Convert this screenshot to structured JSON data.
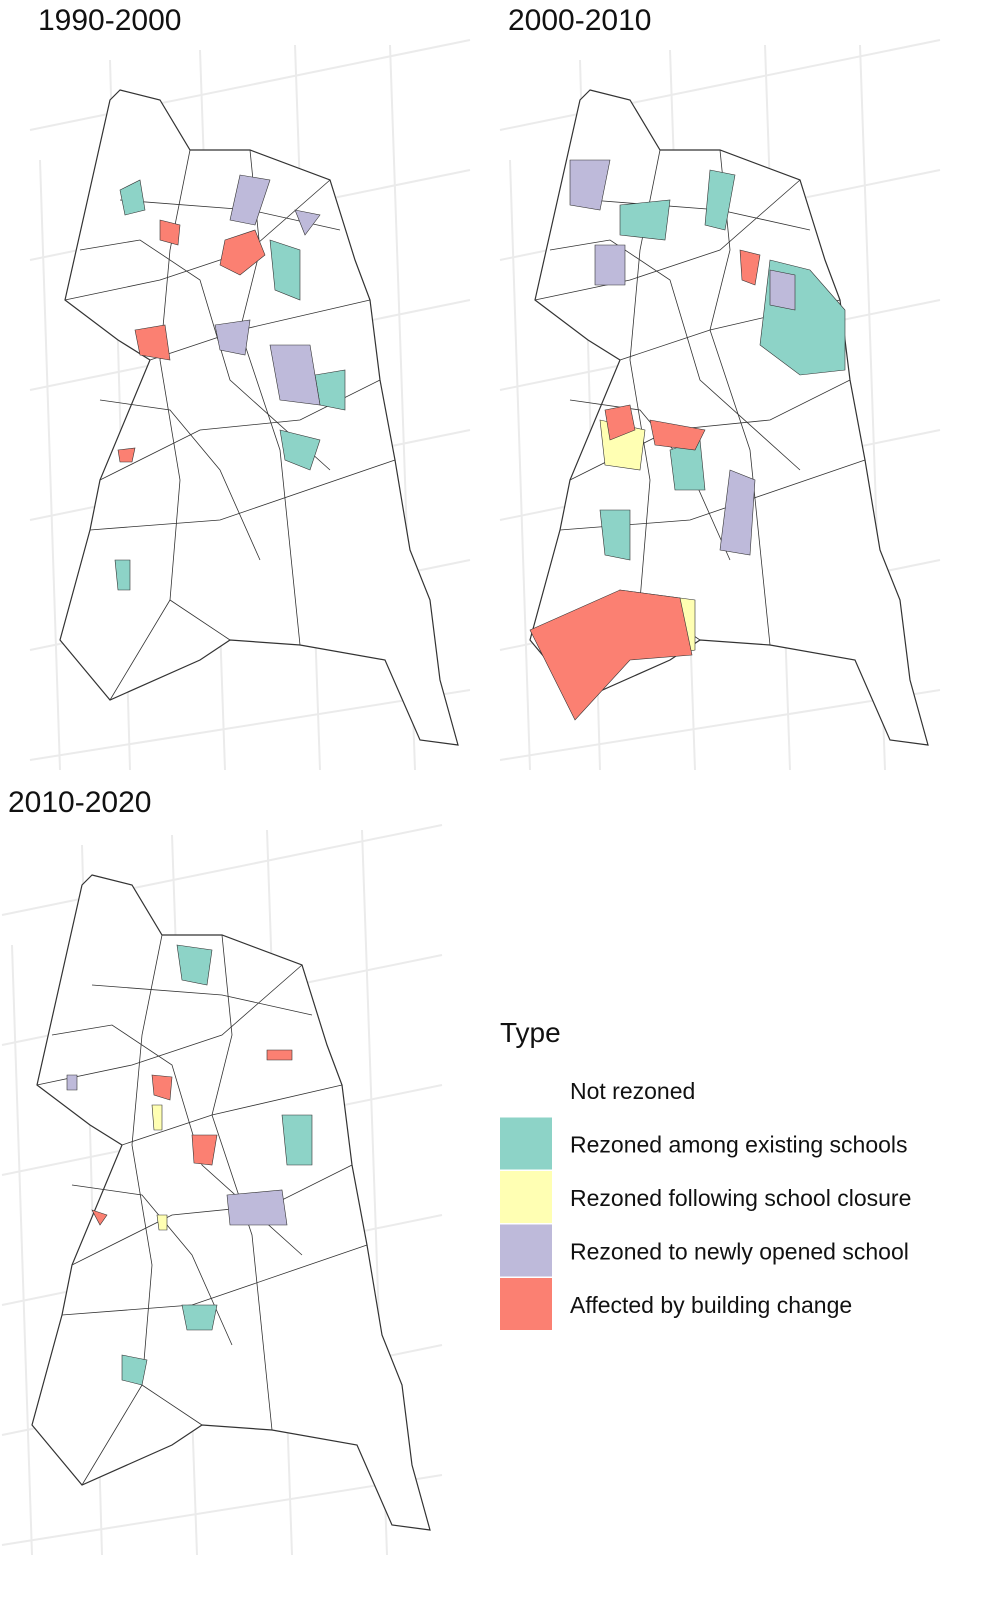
{
  "panels": [
    {
      "title": "1990-2000"
    },
    {
      "title": "2000-2010"
    },
    {
      "title": "2010-2020"
    }
  ],
  "legend": {
    "title": "Type",
    "items": [
      {
        "label": "Not rezoned",
        "color": "#ffffff"
      },
      {
        "label": "Rezoned among existing schools",
        "color": "#8dd3c7"
      },
      {
        "label": "Rezoned following school closure",
        "color": "#ffffb3"
      },
      {
        "label": "Rezoned to newly opened school",
        "color": "#bebada"
      },
      {
        "label": "Affected by building change",
        "color": "#fb8072"
      }
    ]
  }
}
